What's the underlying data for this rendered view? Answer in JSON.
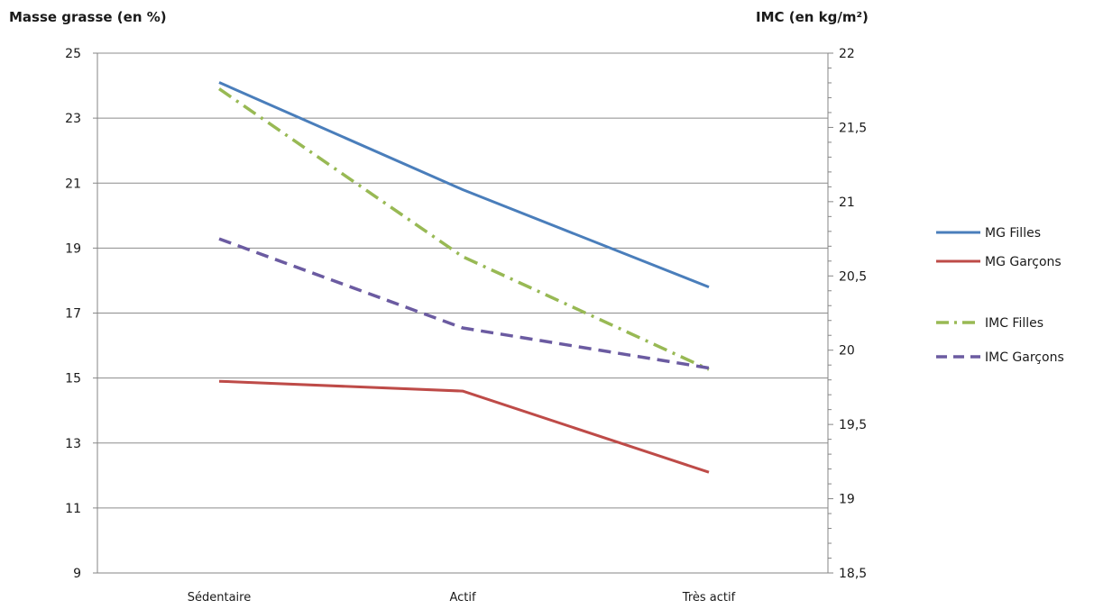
{
  "chart_data": {
    "type": "line",
    "left_axis_title": "Masse grasse (en %)",
    "right_axis_title": "IMC  (en kg/m²)",
    "categories": [
      "Sédentaire",
      "Actif",
      "Très actif"
    ],
    "left_axis": {
      "min": 9,
      "max": 25,
      "ticks": [
        25,
        23,
        21,
        19,
        17,
        15,
        13,
        11,
        9
      ],
      "tick_labels": [
        "25",
        "23",
        "21",
        "19",
        "17",
        "15",
        "13",
        "11",
        "9"
      ]
    },
    "right_axis": {
      "min": 18.5,
      "max": 22,
      "ticks": [
        22,
        21.5,
        21,
        20.5,
        20,
        19.5,
        19,
        18.5
      ],
      "tick_labels": [
        "22",
        "21,5",
        "21",
        "20,5",
        "20",
        "19,5",
        "19",
        "18,5"
      ]
    },
    "grid": true,
    "legend_position": "right",
    "series": [
      {
        "name": "MG Filles",
        "axis": "left",
        "values": [
          24.1,
          20.8,
          17.8
        ],
        "color": "#4a7ebb",
        "dash": "solid"
      },
      {
        "name": "MG Garçons",
        "axis": "left",
        "values": [
          14.9,
          14.6,
          12.1
        ],
        "color": "#be4b48",
        "dash": "solid"
      },
      {
        "name": "IMC Filles",
        "axis": "right",
        "values": [
          21.76,
          20.63,
          19.87
        ],
        "color": "#98b954",
        "dash": "dashdot"
      },
      {
        "name": "IMC Garçons",
        "axis": "right",
        "values": [
          20.75,
          20.15,
          19.88
        ],
        "color": "#6b5ba1",
        "dash": "dash"
      }
    ]
  }
}
